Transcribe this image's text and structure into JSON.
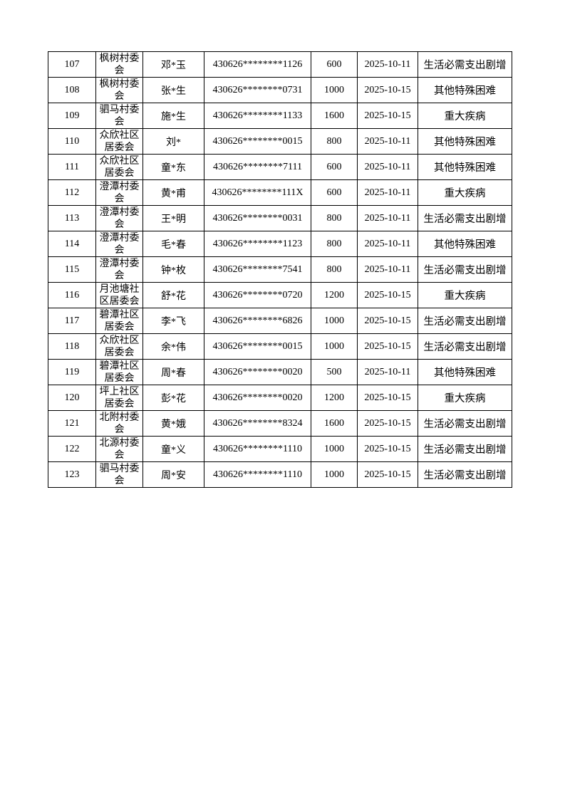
{
  "rows": [
    {
      "no": "107",
      "village": "枫树村委会",
      "name": "邓*玉",
      "id": "430626********1126",
      "amount": "600",
      "date": "2025-10-11",
      "reason": "生活必需支出剧增"
    },
    {
      "no": "108",
      "village": "枫树村委会",
      "name": "张*生",
      "id": "430626********0731",
      "amount": "1000",
      "date": "2025-10-15",
      "reason": "其他特殊困难"
    },
    {
      "no": "109",
      "village": "驷马村委会",
      "name": "施*生",
      "id": "430626********1133",
      "amount": "1600",
      "date": "2025-10-15",
      "reason": "重大疾病"
    },
    {
      "no": "110",
      "village": "众欣社区居委会",
      "name": "刘*",
      "id": "430626********0015",
      "amount": "800",
      "date": "2025-10-11",
      "reason": "其他特殊困难"
    },
    {
      "no": "111",
      "village": "众欣社区居委会",
      "name": "童*东",
      "id": "430626********7111",
      "amount": "600",
      "date": "2025-10-11",
      "reason": "其他特殊困难"
    },
    {
      "no": "112",
      "village": "澄潭村委会",
      "name": "黄*甫",
      "id": "430626********111X",
      "amount": "600",
      "date": "2025-10-11",
      "reason": "重大疾病"
    },
    {
      "no": "113",
      "village": "澄潭村委会",
      "name": "王*明",
      "id": "430626********0031",
      "amount": "800",
      "date": "2025-10-11",
      "reason": "生活必需支出剧增"
    },
    {
      "no": "114",
      "village": "澄潭村委会",
      "name": "毛*春",
      "id": "430626********1123",
      "amount": "800",
      "date": "2025-10-11",
      "reason": "其他特殊困难"
    },
    {
      "no": "115",
      "village": "澄潭村委会",
      "name": "钟*枚",
      "id": "430626********7541",
      "amount": "800",
      "date": "2025-10-11",
      "reason": "生活必需支出剧增"
    },
    {
      "no": "116",
      "village": "月池塘社区居委会",
      "name": "舒*花",
      "id": "430626********0720",
      "amount": "1200",
      "date": "2025-10-15",
      "reason": "重大疾病"
    },
    {
      "no": "117",
      "village": "碧潭社区居委会",
      "name": "李*飞",
      "id": "430626********6826",
      "amount": "1000",
      "date": "2025-10-15",
      "reason": "生活必需支出剧增"
    },
    {
      "no": "118",
      "village": "众欣社区居委会",
      "name": "余*伟",
      "id": "430626********0015",
      "amount": "1000",
      "date": "2025-10-15",
      "reason": "生活必需支出剧增"
    },
    {
      "no": "119",
      "village": "碧潭社区居委会",
      "name": "周*春",
      "id": "430626********0020",
      "amount": "500",
      "date": "2025-10-11",
      "reason": "其他特殊困难"
    },
    {
      "no": "120",
      "village": "坪上社区居委会",
      "name": "彭*花",
      "id": "430626********0020",
      "amount": "1200",
      "date": "2025-10-15",
      "reason": "重大疾病"
    },
    {
      "no": "121",
      "village": "北附村委会",
      "name": "黄*娥",
      "id": "430626********8324",
      "amount": "1600",
      "date": "2025-10-15",
      "reason": "生活必需支出剧增"
    },
    {
      "no": "122",
      "village": "北源村委会",
      "name": "童*义",
      "id": "430626********1110",
      "amount": "1000",
      "date": "2025-10-15",
      "reason": "生活必需支出剧增"
    },
    {
      "no": "123",
      "village": "驷马村委会",
      "name": "周*安",
      "id": "430626********1110",
      "amount": "1000",
      "date": "2025-10-15",
      "reason": "生活必需支出剧增"
    }
  ]
}
